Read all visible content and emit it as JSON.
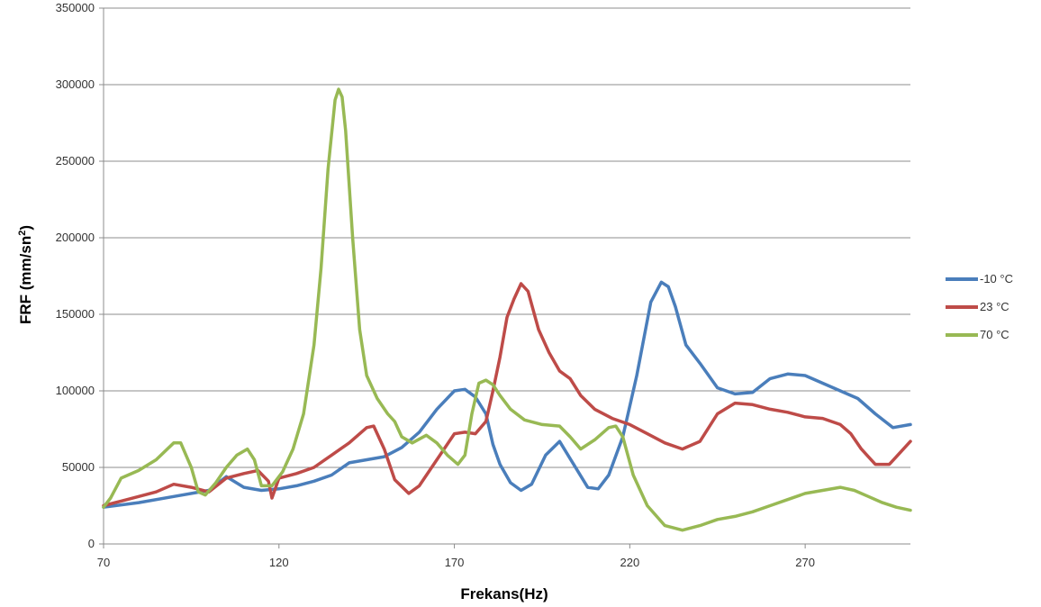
{
  "chart_data": {
    "type": "line",
    "xlabel": "Frekans(Hz)",
    "ylabel_main": "FRF (mm/sn",
    "ylabel_sup": "2",
    "ylabel_close": ")",
    "xlim": [
      70,
      300
    ],
    "ylim": [
      0,
      350000
    ],
    "xticks": [
      70,
      120,
      170,
      220,
      270
    ],
    "yticks": [
      0,
      50000,
      100000,
      150000,
      200000,
      250000,
      300000,
      350000
    ],
    "grid": "horizontal",
    "legend_position": "right",
    "series": [
      {
        "name": "-10 °C",
        "color": "#4a7ebb",
        "x": [
          70,
          80,
          90,
          100,
          105,
          110,
          115,
          120,
          125,
          130,
          135,
          140,
          145,
          150,
          155,
          160,
          165,
          170,
          173,
          176,
          179,
          181,
          183,
          186,
          189,
          192,
          196,
          200,
          204,
          208,
          211,
          214,
          218,
          222,
          226,
          229,
          231,
          233,
          236,
          240,
          245,
          250,
          255,
          260,
          265,
          270,
          275,
          280,
          285,
          290,
          295,
          300
        ],
        "y": [
          24000,
          27000,
          31000,
          35000,
          44000,
          37000,
          35000,
          36000,
          38000,
          41000,
          45000,
          53000,
          55000,
          57000,
          63000,
          73000,
          88000,
          100000,
          101000,
          96000,
          85000,
          65000,
          52000,
          40000,
          35000,
          39000,
          58000,
          67000,
          52000,
          37000,
          36000,
          45000,
          70000,
          110000,
          158000,
          171000,
          168000,
          155000,
          130000,
          118000,
          102000,
          98000,
          99000,
          108000,
          111000,
          110000,
          105000,
          100000,
          95000,
          85000,
          76000,
          78000
        ]
      },
      {
        "name": "23 °C",
        "color": "#be4b48",
        "x": [
          70,
          75,
          80,
          85,
          90,
          95,
          100,
          105,
          110,
          114,
          117,
          118,
          120,
          125,
          130,
          135,
          140,
          145,
          147,
          150,
          153,
          157,
          160,
          165,
          170,
          173,
          176,
          179,
          181,
          183,
          185,
          187,
          189,
          191,
          194,
          197,
          200,
          203,
          206,
          210,
          215,
          220,
          225,
          230,
          235,
          240,
          245,
          250,
          255,
          260,
          265,
          270,
          275,
          280,
          283,
          286,
          290,
          294,
          300
        ],
        "y": [
          25000,
          28000,
          31000,
          34000,
          39000,
          37000,
          34000,
          43000,
          46000,
          48000,
          41000,
          30000,
          43000,
          46000,
          50000,
          58000,
          66000,
          76000,
          77000,
          62000,
          42000,
          33000,
          38000,
          55000,
          72000,
          73000,
          72000,
          80000,
          100000,
          122000,
          148000,
          160000,
          170000,
          165000,
          140000,
          125000,
          113000,
          108000,
          97000,
          88000,
          82000,
          78000,
          72000,
          66000,
          62000,
          67000,
          85000,
          92000,
          91000,
          88000,
          86000,
          83000,
          82000,
          78000,
          72000,
          62000,
          52000,
          52000,
          67000
        ]
      },
      {
        "name": "70 °C",
        "color": "#98b954",
        "x": [
          70,
          72,
          75,
          80,
          85,
          90,
          92,
          95,
          97,
          99,
          102,
          105,
          108,
          111,
          113,
          115,
          118,
          121,
          124,
          127,
          130,
          132,
          134,
          136,
          137,
          138,
          139,
          141,
          143,
          145,
          148,
          151,
          153,
          155,
          158,
          162,
          165,
          168,
          171,
          173,
          175,
          177,
          179,
          181,
          183,
          186,
          190,
          195,
          200,
          203,
          206,
          210,
          214,
          216,
          218,
          221,
          225,
          230,
          235,
          240,
          245,
          250,
          255,
          260,
          265,
          270,
          275,
          280,
          284,
          288,
          292,
          296,
          300
        ],
        "y": [
          24000,
          30000,
          43000,
          48000,
          55000,
          66000,
          66000,
          50000,
          34000,
          32000,
          40000,
          50000,
          58000,
          62000,
          55000,
          38000,
          38000,
          47000,
          62000,
          85000,
          130000,
          180000,
          245000,
          290000,
          297000,
          292000,
          270000,
          200000,
          140000,
          110000,
          95000,
          85000,
          80000,
          70000,
          66000,
          71000,
          66000,
          58000,
          52000,
          58000,
          85000,
          105000,
          107000,
          104000,
          97000,
          88000,
          81000,
          78000,
          77000,
          70000,
          62000,
          68000,
          76000,
          77000,
          70000,
          45000,
          25000,
          12000,
          9000,
          12000,
          16000,
          18000,
          21000,
          25000,
          29000,
          33000,
          35000,
          37000,
          35000,
          31000,
          27000,
          24000,
          22000
        ]
      }
    ]
  }
}
